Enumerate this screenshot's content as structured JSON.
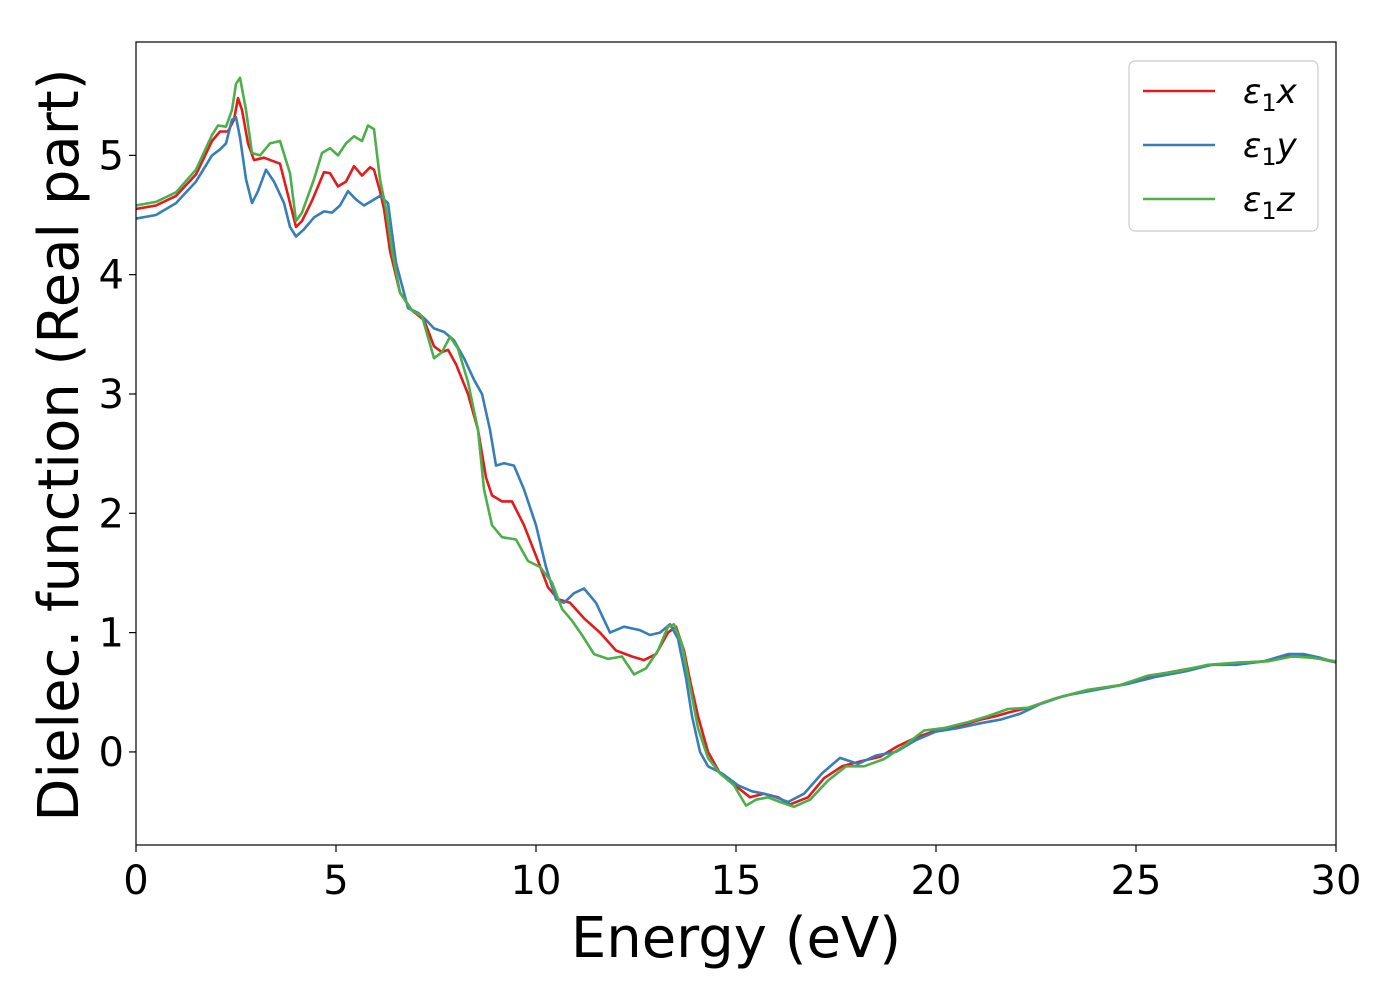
{
  "chart_data": {
    "type": "line",
    "xlabel": "Energy (eV)",
    "ylabel": "Dielec. function (Real part)",
    "xlim": [
      0,
      30
    ],
    "ylim": [
      -0.78,
      5.95
    ],
    "xticks": [
      0,
      5,
      10,
      15,
      20,
      25,
      30
    ],
    "yticks": [
      0,
      1,
      2,
      3,
      4,
      5
    ],
    "grid": false,
    "legend_position": "top-right",
    "series": [
      {
        "name": "ε₁x",
        "legend": {
          "base": "ε",
          "sub": "1",
          "var": "x"
        },
        "color": "#e41a1c",
        "points": [
          [
            0,
            4.55
          ],
          [
            0.5,
            4.58
          ],
          [
            1.0,
            4.66
          ],
          [
            1.5,
            4.84
          ],
          [
            1.9,
            5.12
          ],
          [
            2.1,
            5.2
          ],
          [
            2.3,
            5.2
          ],
          [
            2.45,
            5.3
          ],
          [
            2.55,
            5.48
          ],
          [
            2.65,
            5.38
          ],
          [
            2.8,
            5.1
          ],
          [
            2.95,
            4.96
          ],
          [
            3.2,
            4.98
          ],
          [
            3.6,
            4.93
          ],
          [
            3.85,
            4.6
          ],
          [
            4.0,
            4.4
          ],
          [
            4.15,
            4.45
          ],
          [
            4.4,
            4.62
          ],
          [
            4.7,
            4.86
          ],
          [
            4.85,
            4.85
          ],
          [
            5.05,
            4.74
          ],
          [
            5.25,
            4.78
          ],
          [
            5.45,
            4.91
          ],
          [
            5.65,
            4.83
          ],
          [
            5.85,
            4.9
          ],
          [
            5.95,
            4.88
          ],
          [
            6.1,
            4.7
          ],
          [
            6.2,
            4.55
          ],
          [
            6.35,
            4.2
          ],
          [
            6.6,
            3.85
          ],
          [
            6.9,
            3.7
          ],
          [
            7.2,
            3.62
          ],
          [
            7.45,
            3.4
          ],
          [
            7.65,
            3.35
          ],
          [
            7.8,
            3.37
          ],
          [
            8.0,
            3.25
          ],
          [
            8.3,
            3.0
          ],
          [
            8.55,
            2.7
          ],
          [
            8.75,
            2.3
          ],
          [
            8.9,
            2.15
          ],
          [
            9.15,
            2.1
          ],
          [
            9.4,
            2.1
          ],
          [
            9.7,
            1.9
          ],
          [
            10.05,
            1.6
          ],
          [
            10.3,
            1.38
          ],
          [
            10.55,
            1.28
          ],
          [
            10.85,
            1.25
          ],
          [
            11.2,
            1.12
          ],
          [
            11.6,
            1.0
          ],
          [
            12.0,
            0.85
          ],
          [
            12.4,
            0.8
          ],
          [
            12.7,
            0.77
          ],
          [
            13.0,
            0.82
          ],
          [
            13.3,
            1.0
          ],
          [
            13.5,
            1.05
          ],
          [
            13.7,
            0.85
          ],
          [
            13.85,
            0.6
          ],
          [
            14.05,
            0.3
          ],
          [
            14.3,
            0.0
          ],
          [
            14.6,
            -0.18
          ],
          [
            15.05,
            -0.3
          ],
          [
            15.35,
            -0.38
          ],
          [
            15.7,
            -0.35
          ],
          [
            16.05,
            -0.38
          ],
          [
            16.35,
            -0.44
          ],
          [
            16.8,
            -0.38
          ],
          [
            17.2,
            -0.22
          ],
          [
            17.65,
            -0.12
          ],
          [
            18.1,
            -0.08
          ],
          [
            18.6,
            -0.04
          ],
          [
            19.05,
            0.05
          ],
          [
            19.5,
            0.12
          ],
          [
            20.0,
            0.18
          ],
          [
            20.6,
            0.22
          ],
          [
            21.1,
            0.27
          ],
          [
            21.5,
            0.3
          ],
          [
            21.8,
            0.33
          ],
          [
            22.3,
            0.37
          ],
          [
            23.0,
            0.45
          ],
          [
            23.8,
            0.52
          ],
          [
            24.6,
            0.56
          ],
          [
            25.4,
            0.64
          ],
          [
            26.2,
            0.69
          ],
          [
            26.9,
            0.73
          ],
          [
            27.6,
            0.74
          ],
          [
            28.2,
            0.76
          ],
          [
            28.8,
            0.8
          ],
          [
            29.2,
            0.8
          ],
          [
            29.6,
            0.78
          ],
          [
            30.0,
            0.75
          ]
        ]
      },
      {
        "name": "ε₁y",
        "legend": {
          "base": "ε",
          "sub": "1",
          "var": "y"
        },
        "color": "#377eb8",
        "points": [
          [
            0,
            4.47
          ],
          [
            0.5,
            4.5
          ],
          [
            1.0,
            4.6
          ],
          [
            1.5,
            4.78
          ],
          [
            1.9,
            5.0
          ],
          [
            2.1,
            5.05
          ],
          [
            2.25,
            5.1
          ],
          [
            2.4,
            5.3
          ],
          [
            2.5,
            5.32
          ],
          [
            2.6,
            5.15
          ],
          [
            2.75,
            4.8
          ],
          [
            2.9,
            4.6
          ],
          [
            3.05,
            4.7
          ],
          [
            3.25,
            4.88
          ],
          [
            3.45,
            4.78
          ],
          [
            3.7,
            4.6
          ],
          [
            3.85,
            4.4
          ],
          [
            4.0,
            4.32
          ],
          [
            4.2,
            4.38
          ],
          [
            4.45,
            4.48
          ],
          [
            4.7,
            4.53
          ],
          [
            4.9,
            4.52
          ],
          [
            5.1,
            4.58
          ],
          [
            5.3,
            4.7
          ],
          [
            5.5,
            4.63
          ],
          [
            5.7,
            4.58
          ],
          [
            5.9,
            4.62
          ],
          [
            6.1,
            4.66
          ],
          [
            6.3,
            4.6
          ],
          [
            6.5,
            4.1
          ],
          [
            6.8,
            3.72
          ],
          [
            7.05,
            3.68
          ],
          [
            7.25,
            3.62
          ],
          [
            7.45,
            3.55
          ],
          [
            7.7,
            3.52
          ],
          [
            7.95,
            3.45
          ],
          [
            8.2,
            3.3
          ],
          [
            8.45,
            3.12
          ],
          [
            8.65,
            3.0
          ],
          [
            8.85,
            2.7
          ],
          [
            9.0,
            2.4
          ],
          [
            9.2,
            2.42
          ],
          [
            9.45,
            2.4
          ],
          [
            9.7,
            2.2
          ],
          [
            10.0,
            1.9
          ],
          [
            10.25,
            1.55
          ],
          [
            10.5,
            1.28
          ],
          [
            10.7,
            1.25
          ],
          [
            10.95,
            1.33
          ],
          [
            11.2,
            1.37
          ],
          [
            11.5,
            1.25
          ],
          [
            11.85,
            1.0
          ],
          [
            12.2,
            1.05
          ],
          [
            12.6,
            1.02
          ],
          [
            12.85,
            0.98
          ],
          [
            13.1,
            1.0
          ],
          [
            13.35,
            1.07
          ],
          [
            13.55,
            0.95
          ],
          [
            13.75,
            0.62
          ],
          [
            13.9,
            0.3
          ],
          [
            14.1,
            0.0
          ],
          [
            14.3,
            -0.12
          ],
          [
            14.65,
            -0.18
          ],
          [
            15.05,
            -0.28
          ],
          [
            15.4,
            -0.33
          ],
          [
            15.7,
            -0.35
          ],
          [
            16.0,
            -0.38
          ],
          [
            16.3,
            -0.42
          ],
          [
            16.7,
            -0.35
          ],
          [
            17.15,
            -0.18
          ],
          [
            17.6,
            -0.05
          ],
          [
            18.05,
            -0.1
          ],
          [
            18.5,
            -0.03
          ],
          [
            19.0,
            0.0
          ],
          [
            19.5,
            0.1
          ],
          [
            20.0,
            0.17
          ],
          [
            20.55,
            0.2
          ],
          [
            21.1,
            0.24
          ],
          [
            21.6,
            0.27
          ],
          [
            22.1,
            0.32
          ],
          [
            22.6,
            0.4
          ],
          [
            23.2,
            0.47
          ],
          [
            24.0,
            0.52
          ],
          [
            24.8,
            0.57
          ],
          [
            25.5,
            0.63
          ],
          [
            26.3,
            0.68
          ],
          [
            26.9,
            0.73
          ],
          [
            27.5,
            0.73
          ],
          [
            28.2,
            0.76
          ],
          [
            28.8,
            0.82
          ],
          [
            29.2,
            0.82
          ],
          [
            29.6,
            0.79
          ],
          [
            30.0,
            0.75
          ]
        ]
      },
      {
        "name": "ε₁z",
        "legend": {
          "base": "ε",
          "sub": "1",
          "var": "z"
        },
        "color": "#4daf4a",
        "points": [
          [
            0,
            4.58
          ],
          [
            0.5,
            4.61
          ],
          [
            1.0,
            4.69
          ],
          [
            1.5,
            4.88
          ],
          [
            1.9,
            5.17
          ],
          [
            2.05,
            5.25
          ],
          [
            2.25,
            5.24
          ],
          [
            2.4,
            5.38
          ],
          [
            2.5,
            5.6
          ],
          [
            2.6,
            5.65
          ],
          [
            2.75,
            5.38
          ],
          [
            2.9,
            5.02
          ],
          [
            3.1,
            5.0
          ],
          [
            3.35,
            5.1
          ],
          [
            3.6,
            5.12
          ],
          [
            3.85,
            4.85
          ],
          [
            4.0,
            4.45
          ],
          [
            4.15,
            4.52
          ],
          [
            4.45,
            4.8
          ],
          [
            4.65,
            5.02
          ],
          [
            4.85,
            5.06
          ],
          [
            5.05,
            5.0
          ],
          [
            5.25,
            5.1
          ],
          [
            5.45,
            5.16
          ],
          [
            5.65,
            5.12
          ],
          [
            5.8,
            5.25
          ],
          [
            5.95,
            5.22
          ],
          [
            6.1,
            4.8
          ],
          [
            6.25,
            4.55
          ],
          [
            6.4,
            4.2
          ],
          [
            6.6,
            3.85
          ],
          [
            6.9,
            3.7
          ],
          [
            7.15,
            3.65
          ],
          [
            7.45,
            3.3
          ],
          [
            7.65,
            3.35
          ],
          [
            7.85,
            3.48
          ],
          [
            8.05,
            3.38
          ],
          [
            8.3,
            3.1
          ],
          [
            8.55,
            2.7
          ],
          [
            8.7,
            2.2
          ],
          [
            8.9,
            1.9
          ],
          [
            9.15,
            1.8
          ],
          [
            9.5,
            1.78
          ],
          [
            9.8,
            1.6
          ],
          [
            10.1,
            1.55
          ],
          [
            10.4,
            1.42
          ],
          [
            10.65,
            1.2
          ],
          [
            10.9,
            1.1
          ],
          [
            11.15,
            0.98
          ],
          [
            11.45,
            0.82
          ],
          [
            11.8,
            0.78
          ],
          [
            12.15,
            0.8
          ],
          [
            12.45,
            0.65
          ],
          [
            12.75,
            0.7
          ],
          [
            13.05,
            0.85
          ],
          [
            13.3,
            1.05
          ],
          [
            13.45,
            1.07
          ],
          [
            13.65,
            0.9
          ],
          [
            13.85,
            0.55
          ],
          [
            14.05,
            0.2
          ],
          [
            14.3,
            -0.05
          ],
          [
            14.6,
            -0.18
          ],
          [
            14.95,
            -0.28
          ],
          [
            15.25,
            -0.45
          ],
          [
            15.5,
            -0.4
          ],
          [
            15.8,
            -0.38
          ],
          [
            16.1,
            -0.42
          ],
          [
            16.45,
            -0.46
          ],
          [
            16.85,
            -0.4
          ],
          [
            17.3,
            -0.24
          ],
          [
            17.75,
            -0.12
          ],
          [
            18.2,
            -0.12
          ],
          [
            18.7,
            -0.06
          ],
          [
            19.2,
            0.05
          ],
          [
            19.7,
            0.18
          ],
          [
            20.2,
            0.2
          ],
          [
            20.8,
            0.25
          ],
          [
            21.3,
            0.3
          ],
          [
            21.8,
            0.36
          ],
          [
            22.3,
            0.37
          ],
          [
            23.0,
            0.45
          ],
          [
            23.8,
            0.52
          ],
          [
            24.6,
            0.56
          ],
          [
            25.3,
            0.64
          ],
          [
            26.1,
            0.68
          ],
          [
            26.8,
            0.73
          ],
          [
            27.6,
            0.75
          ],
          [
            28.3,
            0.76
          ],
          [
            28.9,
            0.8
          ],
          [
            29.4,
            0.79
          ],
          [
            30.0,
            0.76
          ]
        ]
      }
    ]
  }
}
